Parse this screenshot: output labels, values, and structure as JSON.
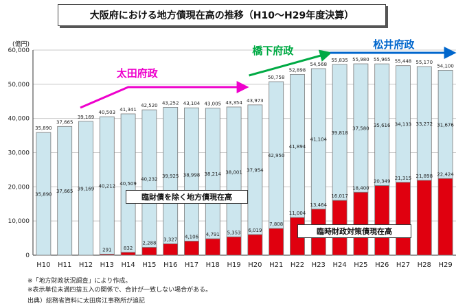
{
  "title": "大阪府における地方債現在高の推移（H10〜H29年度決算）",
  "chart_data": {
    "type": "bar",
    "stacked": true,
    "unit_label": "(億円)",
    "ylim": [
      0,
      60000
    ],
    "y_ticks": [
      "0",
      "10,000",
      "20,000",
      "30,000",
      "40,000",
      "50,000",
      "60,000"
    ],
    "y_tick_values": [
      0,
      10000,
      20000,
      30000,
      40000,
      50000,
      60000
    ],
    "categories": [
      "H10",
      "H11",
      "H12",
      "H13",
      "H14",
      "H15",
      "H16",
      "H17",
      "H18",
      "H19",
      "H20",
      "H21",
      "H22",
      "H23",
      "H24",
      "H25",
      "H26",
      "H27",
      "H28",
      "H29"
    ],
    "totals": [
      "35,890",
      "37,665",
      "39,169",
      "40,503",
      "41,341",
      "42,520",
      "43,252",
      "43,104",
      "43,005",
      "43,354",
      "43,973",
      "50,758",
      "52,898",
      "54,568",
      "55,835",
      "55,980",
      "55,965",
      "55,448",
      "55,170",
      "54,100"
    ],
    "series": [
      {
        "name": "臨財債を除く地方債現在高",
        "color": "#cce6ee",
        "values": [
          35890,
          37665,
          39169,
          40212,
          40509,
          40232,
          39925,
          38998,
          38214,
          38001,
          37954,
          42950,
          41894,
          41104,
          39818,
          37580,
          35616,
          34133,
          33272,
          31676
        ],
        "labels": [
          "35,890",
          "37,665",
          "39,169",
          "40,212",
          "40,509",
          "40,232",
          "39,925",
          "38,998",
          "38,214",
          "38,001",
          "37,954",
          "42,950",
          "41,894",
          "41,104",
          "39,818",
          "37,580",
          "35,616",
          "34,133",
          "33,272",
          "31,676"
        ]
      },
      {
        "name": "臨時財政対策債現在高",
        "color": "#e0000f",
        "values": [
          0,
          0,
          0,
          291,
          832,
          2288,
          3327,
          4106,
          4791,
          5353,
          6019,
          7808,
          11004,
          13464,
          16017,
          18400,
          20349,
          21315,
          21898,
          22424
        ],
        "labels": [
          "",
          "",
          "",
          "291",
          "832",
          "2,288",
          "3,327",
          "4,106",
          "4,791",
          "5,353",
          "6,019",
          "7,808",
          "11,004",
          "13,464",
          "16,017",
          "18,400",
          "20,349",
          "21,315",
          "21,898",
          "22,424"
        ]
      }
    ],
    "eras": [
      {
        "name": "太田府政",
        "color": "#ee00cc",
        "from": "H12",
        "to": "H19"
      },
      {
        "name": "橋下府政",
        "color": "#00aa44",
        "from": "H19",
        "to": "H23"
      },
      {
        "name": "松井府政",
        "color": "#0066cc",
        "from": "H24",
        "to": "H29"
      }
    ],
    "grid": true
  },
  "notes": [
    "※「地方財政状況調査」により作成。",
    "※表示単位未満四捨五入の関係で、合計が一致しない場合がある。",
    "出典）総務省資料に太田房江事務所が追記"
  ]
}
